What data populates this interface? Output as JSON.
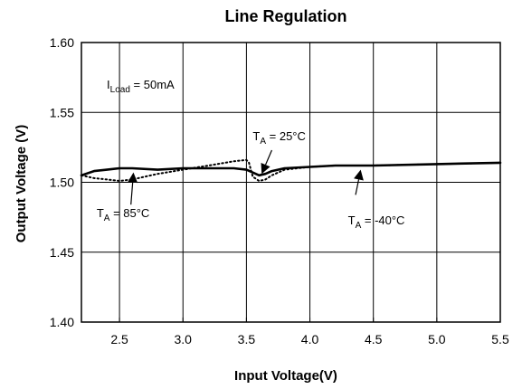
{
  "chart_data": {
    "type": "line",
    "title": "Line Regulation",
    "xlabel": "Input Voltage(V)",
    "ylabel": "Output Voltage (V)",
    "xlim": [
      2.2,
      5.5
    ],
    "ylim": [
      1.4,
      1.6
    ],
    "xticks": [
      2.5,
      3.0,
      3.5,
      4.0,
      4.5,
      5.0,
      5.5
    ],
    "xtick_labels": [
      "2.5",
      "3.0",
      "3.5",
      "4.0",
      "4.5",
      "5.0",
      "5.5"
    ],
    "yticks": [
      1.4,
      1.45,
      1.5,
      1.55,
      1.6
    ],
    "ytick_labels": [
      "1.40",
      "1.45",
      "1.50",
      "1.55",
      "1.60"
    ],
    "grid": true,
    "condition": {
      "prefix": "I",
      "sub": "Load",
      "suffix": " = 50mA"
    },
    "series": [
      {
        "style": "solid",
        "x": [
          2.2,
          2.3,
          2.4,
          2.5,
          2.6,
          2.8,
          3.0,
          3.2,
          3.4,
          3.5,
          3.55,
          3.6,
          3.65,
          3.7,
          3.8,
          4.0,
          4.2,
          4.5,
          5.0,
          5.5
        ],
        "values": [
          1.505,
          1.508,
          1.509,
          1.51,
          1.51,
          1.509,
          1.51,
          1.51,
          1.51,
          1.509,
          1.507,
          1.505,
          1.506,
          1.508,
          1.51,
          1.511,
          1.512,
          1.512,
          1.513,
          1.514
        ]
      },
      {
        "style": "dotted",
        "x": [
          2.2,
          2.3,
          2.4,
          2.5,
          2.6,
          2.8,
          3.0,
          3.2,
          3.4,
          3.5,
          3.52,
          3.55,
          3.6,
          3.65,
          3.7,
          3.8,
          4.0,
          4.2,
          4.5,
          5.0,
          5.5
        ],
        "values": [
          1.505,
          1.503,
          1.502,
          1.501,
          1.502,
          1.506,
          1.509,
          1.512,
          1.515,
          1.516,
          1.514,
          1.504,
          1.501,
          1.502,
          1.505,
          1.509,
          1.511,
          1.512,
          1.512,
          1.513,
          1.514
        ]
      }
    ],
    "annotations": [
      {
        "prefix": "T",
        "sub": "A",
        "suffix": " = 25°C",
        "text_at": [
          3.55,
          1.53
        ],
        "arrow_from": [
          3.7,
          1.523
        ],
        "arrow_to": [
          3.62,
          1.506
        ]
      },
      {
        "prefix": "T",
        "sub": "A",
        "suffix": " = 85°C",
        "text_at": [
          2.32,
          1.475
        ],
        "arrow_from": [
          2.59,
          1.484
        ],
        "arrow_to": [
          2.61,
          1.507
        ]
      },
      {
        "prefix": "T",
        "sub": "A",
        "suffix": " = -40°C",
        "text_at": [
          4.3,
          1.47
        ],
        "arrow_from": [
          4.36,
          1.491
        ],
        "arrow_to": [
          4.4,
          1.509
        ]
      }
    ]
  }
}
